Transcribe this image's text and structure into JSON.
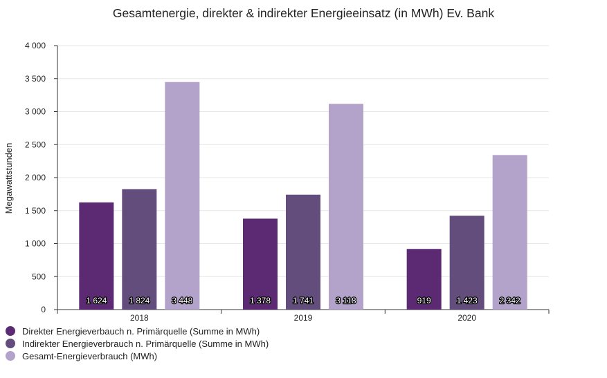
{
  "chart_data": {
    "type": "bar",
    "title": "Gesamtenergie, direkter & indirekter Energieeinsatz (in MWh) Ev. Bank",
    "xlabel": "",
    "ylabel": "Megawattstunden",
    "ylim": [
      0,
      4000
    ],
    "y_ticks": [
      0,
      500,
      1000,
      1500,
      2000,
      2500,
      3000,
      3500,
      4000
    ],
    "y_tick_labels": [
      "0",
      "500",
      "1 000",
      "1 500",
      "2 000",
      "2 500",
      "3 000",
      "3 500",
      "4 000"
    ],
    "categories": [
      "2018",
      "2019",
      "2020"
    ],
    "series": [
      {
        "name": "Direkter Energieverbauch n. Primärquelle (Summe in MWh)",
        "values": [
          1624,
          1378,
          919
        ],
        "labels": [
          "1 624",
          "1 378",
          "919"
        ],
        "color": "#5b2a73"
      },
      {
        "name": "Indirekter Energieverbrauch n. Primärquelle (Summe in MWh)",
        "values": [
          1824,
          1741,
          1423
        ],
        "labels": [
          "1 824",
          "1 741",
          "1 423"
        ],
        "color": "#634d7d"
      },
      {
        "name": "Gesamt-Energieverbrauch (MWh)",
        "values": [
          3448,
          3118,
          2342
        ],
        "labels": [
          "3 448",
          "3 118",
          "2 342"
        ],
        "color": "#b3a2c9"
      }
    ],
    "grid": true,
    "legend_position": "bottom-left"
  }
}
